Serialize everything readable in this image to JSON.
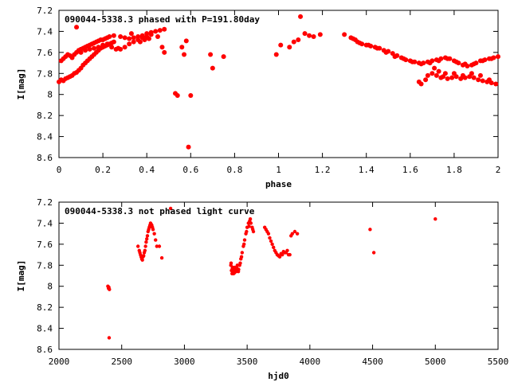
{
  "chart_data": [
    {
      "type": "scatter",
      "title": "090044-5338.3 phased with P=191.80day",
      "xlabel": "phase",
      "ylabel": "I[mag]",
      "xlim": [
        0,
        2
      ],
      "ylim": [
        7.2,
        8.6
      ],
      "y_inverted": true,
      "x_ticks": [
        "0",
        "0.2",
        "0.4",
        "0.6",
        "0.8",
        "1",
        "1.2",
        "1.4",
        "1.6",
        "1.8",
        "2"
      ],
      "y_ticks": [
        "7.2",
        "7.4",
        "7.6",
        "7.8",
        "8",
        "8.2",
        "8.4",
        "8.6"
      ],
      "marker_color": "#ff0000",
      "points": [
        [
          0.0,
          7.88
        ],
        [
          0.01,
          7.86
        ],
        [
          0.02,
          7.87
        ],
        [
          0.03,
          7.85
        ],
        [
          0.04,
          7.84
        ],
        [
          0.05,
          7.83
        ],
        [
          0.06,
          7.82
        ],
        [
          0.07,
          7.8
        ],
        [
          0.08,
          7.79
        ],
        [
          0.09,
          7.77
        ],
        [
          0.1,
          7.75
        ],
        [
          0.11,
          7.72
        ],
        [
          0.12,
          7.7
        ],
        [
          0.13,
          7.68
        ],
        [
          0.14,
          7.66
        ],
        [
          0.15,
          7.64
        ],
        [
          0.16,
          7.62
        ],
        [
          0.17,
          7.6
        ],
        [
          0.18,
          7.58
        ],
        [
          0.19,
          7.56
        ],
        [
          0.2,
          7.55
        ],
        [
          0.21,
          7.54
        ],
        [
          0.22,
          7.53
        ],
        [
          0.23,
          7.52
        ],
        [
          0.24,
          7.51
        ],
        [
          0.25,
          7.5
        ],
        [
          0.01,
          7.68
        ],
        [
          0.02,
          7.66
        ],
        [
          0.03,
          7.64
        ],
        [
          0.04,
          7.62
        ],
        [
          0.05,
          7.63
        ],
        [
          0.06,
          7.65
        ],
        [
          0.07,
          7.62
        ],
        [
          0.08,
          7.6
        ],
        [
          0.09,
          7.58
        ],
        [
          0.1,
          7.57
        ],
        [
          0.11,
          7.56
        ],
        [
          0.12,
          7.55
        ],
        [
          0.13,
          7.54
        ],
        [
          0.14,
          7.53
        ],
        [
          0.15,
          7.52
        ],
        [
          0.16,
          7.51
        ],
        [
          0.17,
          7.5
        ],
        [
          0.18,
          7.49
        ],
        [
          0.19,
          7.48
        ],
        [
          0.2,
          7.48
        ],
        [
          0.21,
          7.47
        ],
        [
          0.22,
          7.46
        ],
        [
          0.1,
          7.6
        ],
        [
          0.12,
          7.58
        ],
        [
          0.14,
          7.57
        ],
        [
          0.16,
          7.56
        ],
        [
          0.18,
          7.55
        ],
        [
          0.2,
          7.53
        ],
        [
          0.22,
          7.52
        ],
        [
          0.24,
          7.55
        ],
        [
          0.26,
          7.57
        ],
        [
          0.27,
          7.56
        ],
        [
          0.28,
          7.57
        ],
        [
          0.08,
          7.36
        ],
        [
          0.23,
          7.45
        ],
        [
          0.25,
          7.44
        ],
        [
          0.28,
          7.45
        ],
        [
          0.3,
          7.46
        ],
        [
          0.32,
          7.47
        ],
        [
          0.34,
          7.46
        ],
        [
          0.36,
          7.45
        ],
        [
          0.38,
          7.44
        ],
        [
          0.4,
          7.42
        ],
        [
          0.42,
          7.41
        ],
        [
          0.44,
          7.4
        ],
        [
          0.46,
          7.39
        ],
        [
          0.48,
          7.38
        ],
        [
          0.3,
          7.55
        ],
        [
          0.32,
          7.52
        ],
        [
          0.34,
          7.5
        ],
        [
          0.36,
          7.48
        ],
        [
          0.38,
          7.46
        ],
        [
          0.4,
          7.45
        ],
        [
          0.42,
          7.43
        ],
        [
          0.33,
          7.42
        ],
        [
          0.37,
          7.5
        ],
        [
          0.39,
          7.48
        ],
        [
          0.41,
          7.47
        ],
        [
          0.45,
          7.45
        ],
        [
          0.47,
          7.55
        ],
        [
          0.48,
          7.6
        ],
        [
          0.53,
          7.99
        ],
        [
          0.54,
          8.01
        ],
        [
          0.58,
          7.49
        ],
        [
          0.59,
          8.5
        ],
        [
          0.6,
          8.01
        ],
        [
          0.57,
          7.62
        ],
        [
          0.56,
          7.55
        ],
        [
          0.69,
          7.62
        ],
        [
          0.7,
          7.75
        ],
        [
          0.75,
          7.64
        ],
        [
          0.99,
          7.62
        ],
        [
          1.01,
          7.53
        ],
        [
          1.05,
          7.55
        ],
        [
          1.07,
          7.5
        ],
        [
          1.09,
          7.48
        ],
        [
          1.1,
          7.26
        ],
        [
          1.12,
          7.42
        ],
        [
          1.14,
          7.44
        ],
        [
          1.16,
          7.45
        ],
        [
          1.19,
          7.43
        ],
        [
          1.3,
          7.43
        ],
        [
          1.33,
          7.46
        ],
        [
          1.35,
          7.48
        ],
        [
          1.36,
          7.5
        ],
        [
          1.38,
          7.52
        ],
        [
          1.4,
          7.53
        ],
        [
          1.42,
          7.54
        ],
        [
          1.44,
          7.55
        ],
        [
          1.46,
          7.56
        ],
        [
          1.48,
          7.58
        ],
        [
          1.5,
          7.59
        ],
        [
          1.52,
          7.61
        ],
        [
          1.54,
          7.63
        ],
        [
          1.56,
          7.65
        ],
        [
          1.58,
          7.67
        ],
        [
          1.6,
          7.68
        ],
        [
          1.62,
          7.69
        ],
        [
          1.64,
          7.7
        ],
        [
          1.66,
          7.7
        ],
        [
          1.68,
          7.69
        ],
        [
          1.7,
          7.68
        ],
        [
          1.72,
          7.67
        ],
        [
          1.74,
          7.66
        ],
        [
          1.76,
          7.65
        ],
        [
          1.78,
          7.66
        ],
        [
          1.8,
          7.68
        ],
        [
          1.82,
          7.7
        ],
        [
          1.84,
          7.72
        ],
        [
          1.86,
          7.73
        ],
        [
          1.88,
          7.72
        ],
        [
          1.9,
          7.7
        ],
        [
          1.92,
          7.68
        ],
        [
          1.94,
          7.67
        ],
        [
          1.96,
          7.66
        ],
        [
          1.98,
          7.65
        ],
        [
          2.0,
          7.64
        ],
        [
          1.34,
          7.47
        ],
        [
          1.37,
          7.51
        ],
        [
          1.41,
          7.53
        ],
        [
          1.45,
          7.56
        ],
        [
          1.49,
          7.6
        ],
        [
          1.53,
          7.64
        ],
        [
          1.57,
          7.66
        ],
        [
          1.61,
          7.69
        ],
        [
          1.65,
          7.71
        ],
        [
          1.69,
          7.7
        ],
        [
          1.73,
          7.68
        ],
        [
          1.77,
          7.66
        ],
        [
          1.81,
          7.69
        ],
        [
          1.85,
          7.71
        ],
        [
          1.89,
          7.71
        ],
        [
          1.93,
          7.68
        ],
        [
          1.97,
          7.66
        ],
        [
          1.64,
          7.88
        ],
        [
          1.65,
          7.9
        ],
        [
          1.67,
          7.86
        ],
        [
          1.68,
          7.82
        ],
        [
          1.7,
          7.8
        ],
        [
          1.72,
          7.82
        ],
        [
          1.74,
          7.84
        ],
        [
          1.75,
          7.83
        ],
        [
          1.77,
          7.85
        ],
        [
          1.79,
          7.84
        ],
        [
          1.81,
          7.83
        ],
        [
          1.83,
          7.85
        ],
        [
          1.85,
          7.84
        ],
        [
          1.87,
          7.83
        ],
        [
          1.89,
          7.84
        ],
        [
          1.91,
          7.86
        ],
        [
          1.93,
          7.87
        ],
        [
          1.95,
          7.88
        ],
        [
          1.97,
          7.89
        ],
        [
          1.99,
          7.9
        ],
        [
          1.71,
          7.75
        ],
        [
          1.73,
          7.78
        ],
        [
          1.76,
          7.8
        ],
        [
          1.8,
          7.8
        ],
        [
          1.84,
          7.82
        ],
        [
          1.88,
          7.8
        ],
        [
          1.92,
          7.82
        ],
        [
          1.96,
          7.86
        ]
      ]
    },
    {
      "type": "scatter",
      "title": "090044-5338.3 not phased light curve",
      "xlabel": "hjd0",
      "ylabel": "I[mag]",
      "xlim": [
        2000,
        5500
      ],
      "ylim": [
        7.2,
        8.6
      ],
      "y_inverted": true,
      "x_ticks": [
        "2000",
        "2500",
        "3000",
        "3500",
        "4000",
        "4500",
        "5000",
        "5500"
      ],
      "y_ticks": [
        "7.2",
        "7.4",
        "7.6",
        "7.8",
        "8",
        "8.2",
        "8.4",
        "8.6"
      ],
      "marker_color": "#ff0000",
      "points": [
        [
          2390,
          8.0
        ],
        [
          2395,
          8.02
        ],
        [
          2398,
          8.01
        ],
        [
          2400,
          8.49
        ],
        [
          2402,
          8.03
        ],
        [
          2630,
          7.62
        ],
        [
          2640,
          7.66
        ],
        [
          2650,
          7.7
        ],
        [
          2660,
          7.74
        ],
        [
          2670,
          7.72
        ],
        [
          2680,
          7.68
        ],
        [
          2690,
          7.62
        ],
        [
          2700,
          7.55
        ],
        [
          2710,
          7.48
        ],
        [
          2720,
          7.44
        ],
        [
          2730,
          7.4
        ],
        [
          2740,
          7.42
        ],
        [
          2750,
          7.46
        ],
        [
          2760,
          7.5
        ],
        [
          2770,
          7.56
        ],
        [
          2780,
          7.62
        ],
        [
          2645,
          7.68
        ],
        [
          2655,
          7.72
        ],
        [
          2665,
          7.75
        ],
        [
          2675,
          7.71
        ],
        [
          2685,
          7.66
        ],
        [
          2695,
          7.58
        ],
        [
          2705,
          7.52
        ],
        [
          2715,
          7.46
        ],
        [
          2725,
          7.42
        ],
        [
          2735,
          7.41
        ],
        [
          2745,
          7.44
        ],
        [
          2800,
          7.62
        ],
        [
          2820,
          7.73
        ],
        [
          2890,
          7.26
        ],
        [
          3370,
          7.8
        ],
        [
          3375,
          7.85
        ],
        [
          3380,
          7.88
        ],
        [
          3385,
          7.82
        ],
        [
          3390,
          7.86
        ],
        [
          3395,
          7.84
        ],
        [
          3400,
          7.87
        ],
        [
          3410,
          7.85
        ],
        [
          3420,
          7.83
        ],
        [
          3430,
          7.86
        ],
        [
          3440,
          7.8
        ],
        [
          3450,
          7.74
        ],
        [
          3460,
          7.68
        ],
        [
          3470,
          7.62
        ],
        [
          3480,
          7.56
        ],
        [
          3490,
          7.5
        ],
        [
          3500,
          7.44
        ],
        [
          3510,
          7.4
        ],
        [
          3520,
          7.38
        ],
        [
          3530,
          7.4
        ],
        [
          3540,
          7.44
        ],
        [
          3550,
          7.48
        ],
        [
          3372,
          7.78
        ],
        [
          3382,
          7.83
        ],
        [
          3392,
          7.88
        ],
        [
          3402,
          7.82
        ],
        [
          3412,
          7.86
        ],
        [
          3422,
          7.8
        ],
        [
          3432,
          7.84
        ],
        [
          3445,
          7.78
        ],
        [
          3455,
          7.72
        ],
        [
          3475,
          7.6
        ],
        [
          3495,
          7.48
        ],
        [
          3515,
          7.43
        ],
        [
          3525,
          7.36
        ],
        [
          3545,
          7.46
        ],
        [
          3640,
          7.44
        ],
        [
          3660,
          7.48
        ],
        [
          3680,
          7.54
        ],
        [
          3700,
          7.6
        ],
        [
          3720,
          7.66
        ],
        [
          3740,
          7.7
        ],
        [
          3760,
          7.72
        ],
        [
          3780,
          7.7
        ],
        [
          3800,
          7.68
        ],
        [
          3820,
          7.66
        ],
        [
          3840,
          7.7
        ],
        [
          3860,
          7.5
        ],
        [
          3650,
          7.46
        ],
        [
          3670,
          7.5
        ],
        [
          3690,
          7.57
        ],
        [
          3710,
          7.63
        ],
        [
          3730,
          7.68
        ],
        [
          3750,
          7.71
        ],
        [
          3770,
          7.69
        ],
        [
          3790,
          7.67
        ],
        [
          3810,
          7.68
        ],
        [
          3830,
          7.7
        ],
        [
          3850,
          7.52
        ],
        [
          3880,
          7.48
        ],
        [
          3900,
          7.5
        ],
        [
          4480,
          7.46
        ],
        [
          4510,
          7.68
        ],
        [
          5000,
          7.36
        ]
      ]
    }
  ]
}
